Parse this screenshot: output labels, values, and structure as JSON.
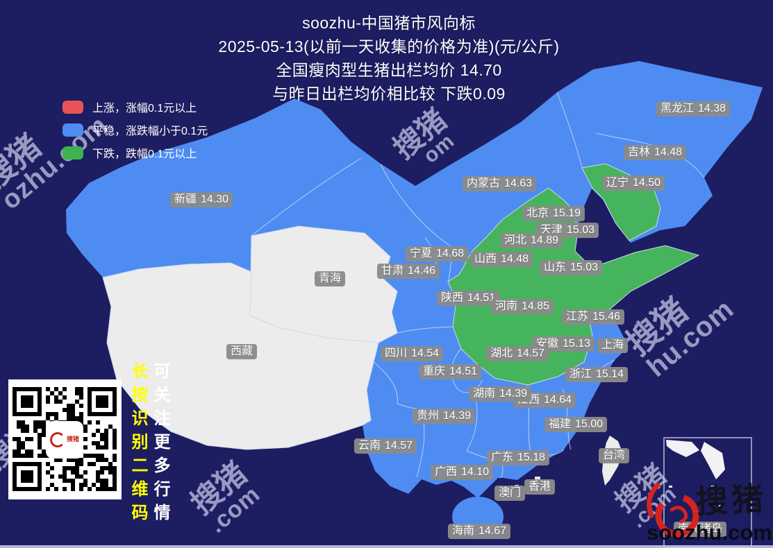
{
  "title": {
    "line1": "soozhu-中国猪市风向标",
    "line2": "2025-05-13(以前一天收集的价格为准)(元/公斤)",
    "line3": "全国瘦肉型生猪出栏均价 14.70",
    "line4": "与昨日出栏均价相比较 下跌0.09"
  },
  "legend": {
    "up": {
      "label": "上涨，涨幅0.1元以上",
      "color": "#e95355"
    },
    "stable": {
      "label": "平稳，涨跌幅小于0.1元",
      "color": "#4e8cf2"
    },
    "down": {
      "label": "下跌，跌幅0.1元以上",
      "color": "#3cb34e"
    }
  },
  "colors": {
    "background": "#1d1d62",
    "stable_fill": "#4e8cf2",
    "down_fill": "#46b45c",
    "nodata_fill": "#ececec",
    "label_bg": "#8a8a8a",
    "watermark": "#c8cae6",
    "note_yellow": "#ffff00",
    "logo_red": "#d5231f"
  },
  "map": {
    "labels": [
      {
        "name": "黑龙江",
        "value": "14.38",
        "status": "stable"
      },
      {
        "name": "吉林",
        "value": "14.48",
        "status": "stable"
      },
      {
        "name": "辽宁",
        "value": "14.50",
        "status": "down"
      },
      {
        "name": "内蒙古",
        "value": "14.63",
        "status": "stable"
      },
      {
        "name": "北京",
        "value": "15.19",
        "status": "down"
      },
      {
        "name": "天津",
        "value": "15.03",
        "status": "down"
      },
      {
        "name": "河北",
        "value": "14.89",
        "status": "down"
      },
      {
        "name": "宁夏",
        "value": "14.68",
        "status": "stable"
      },
      {
        "name": "山西",
        "value": "14.48",
        "status": "down"
      },
      {
        "name": "山东",
        "value": "15.03",
        "status": "down"
      },
      {
        "name": "甘肃",
        "value": "14.46",
        "status": "stable"
      },
      {
        "name": "青海",
        "value": "",
        "status": "nodata"
      },
      {
        "name": "新疆",
        "value": "14.30",
        "status": "stable"
      },
      {
        "name": "陕西",
        "value": "14.51",
        "status": "down"
      },
      {
        "name": "河南",
        "value": "14.85",
        "status": "down"
      },
      {
        "name": "江苏",
        "value": "15.46",
        "status": "stable"
      },
      {
        "name": "安徽",
        "value": "15.13",
        "status": "down"
      },
      {
        "name": "上海",
        "value": "",
        "status": "stable"
      },
      {
        "name": "四川",
        "value": "14.54",
        "status": "stable"
      },
      {
        "name": "湖北",
        "value": "14.57",
        "status": "down"
      },
      {
        "name": "西藏",
        "value": "",
        "status": "nodata"
      },
      {
        "name": "重庆",
        "value": "14.51",
        "status": "stable"
      },
      {
        "name": "浙江",
        "value": "15.14",
        "status": "stable"
      },
      {
        "name": "江西",
        "value": "14.64",
        "status": "stable"
      },
      {
        "name": "湖南",
        "value": "14.39",
        "status": "stable"
      },
      {
        "name": "贵州",
        "value": "14.39",
        "status": "stable"
      },
      {
        "name": "福建",
        "value": "15.00",
        "status": "stable"
      },
      {
        "name": "云南",
        "value": "14.57",
        "status": "stable"
      },
      {
        "name": "广东",
        "value": "15.18",
        "status": "stable"
      },
      {
        "name": "台湾",
        "value": "",
        "status": "nodata"
      },
      {
        "name": "广西",
        "value": "14.10",
        "status": "stable"
      },
      {
        "name": "香港",
        "value": "",
        "status": "nodata"
      },
      {
        "name": "澳门",
        "value": "",
        "status": "nodata"
      },
      {
        "name": "海南",
        "value": "14.67",
        "status": "stable"
      },
      {
        "name": "南海诸岛",
        "value": "",
        "status": "nodata"
      }
    ]
  },
  "notes": {
    "yellow_vertical": "长按识别二维码",
    "white_vertical": "可关注更多行情"
  },
  "watermarks": [
    {
      "cn": "搜猪",
      "latin": "ozhu.com"
    },
    {
      "cn": "搜猪",
      "latin": "om"
    },
    {
      "cn": "搜猪",
      "latin": "hu.com"
    },
    {
      "cn": "搜猪",
      "latin": ".com"
    },
    {
      "cn": "搜猪",
      "latin": ".com"
    },
    {
      "cn": "搜猪",
      "latin": ".com"
    }
  ],
  "logo": {
    "brand_cn": "搜猪",
    "brand_en": "soozhu.com"
  },
  "qr_badge": {
    "text": "搜猪"
  }
}
